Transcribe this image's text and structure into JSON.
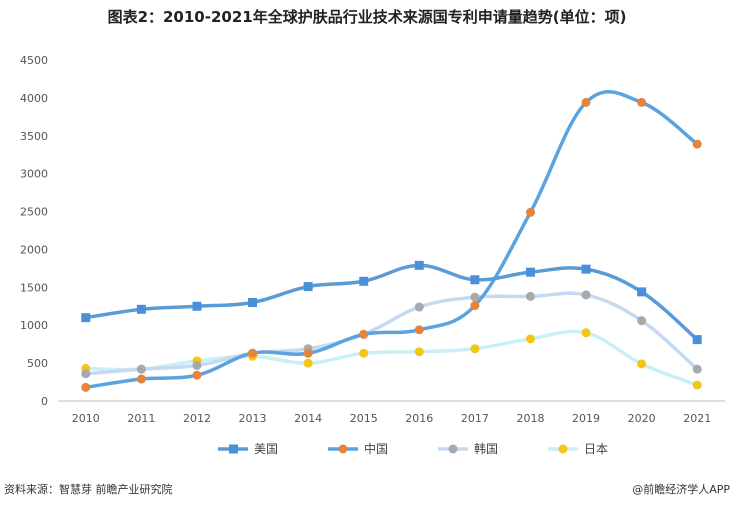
{
  "title": "图表2：2010-2021年全球护肤品行业技术来源国专利申请量趋势(单位：项)",
  "footer": {
    "source": "资料来源：智慧芽 前瞻产业研究院",
    "brand": "@前瞻经济学人APP"
  },
  "chart_data": {
    "type": "line",
    "title": "图表2：2010-2021年全球护肤品行业技术来源国专利申请量趋势(单位：项)",
    "categories": [
      "2010",
      "2011",
      "2012",
      "2013",
      "2014",
      "2015",
      "2016",
      "2017",
      "2018",
      "2019",
      "2020",
      "2021"
    ],
    "ylim": [
      0,
      4500
    ],
    "yticks": [
      0,
      500,
      1000,
      1500,
      2000,
      2500,
      3000,
      3500,
      4000,
      4500
    ],
    "grid": false,
    "legend_position": "bottom",
    "series": [
      {
        "name": "美国",
        "color": "#4a90d9",
        "marker": "square",
        "values": [
          1100,
          1210,
          1250,
          1300,
          1510,
          1580,
          1790,
          1600,
          1700,
          1740,
          1440,
          810
        ]
      },
      {
        "name": "中国",
        "color": "#e8833a",
        "marker": "circle",
        "values": [
          180,
          290,
          340,
          630,
          630,
          880,
          940,
          1260,
          2490,
          3940,
          3940,
          3390
        ]
      },
      {
        "name": "韩国",
        "color": "#a9a9a9",
        "marker": "circle",
        "values": [
          360,
          420,
          470,
          630,
          690,
          880,
          1240,
          1370,
          1380,
          1400,
          1060,
          420
        ]
      },
      {
        "name": "日本",
        "color": "#f5c518",
        "marker": "circle",
        "values": [
          430,
          420,
          530,
          590,
          500,
          630,
          650,
          690,
          820,
          900,
          490,
          210
        ]
      }
    ],
    "line_colors": {
      "美国": "#5b9bd5",
      "中国": "#5ba3e0",
      "韩国": "#c5daf0",
      "日本": "#c8f0f5"
    }
  }
}
